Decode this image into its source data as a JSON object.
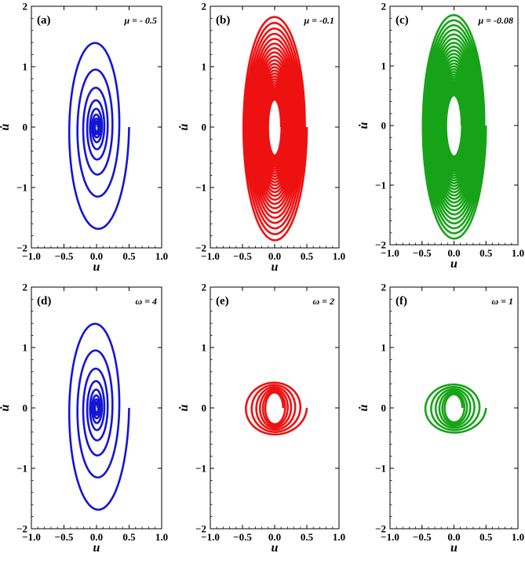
{
  "chart_data": [
    {
      "type": "line",
      "panel_label": "(a)",
      "annotation": "μ = - 0.5",
      "xlabel": "u",
      "ylabel": "u̇",
      "xlim": [
        -1.0,
        1.0
      ],
      "ylim": [
        -2.0,
        2.0
      ],
      "xticks": [
        "−1.0",
        "−0.5",
        "0.0",
        "0.5",
        "1.0"
      ],
      "yticks": [
        "−2",
        "−1",
        "0",
        "1",
        "2"
      ],
      "color": "#1515d6",
      "series": [
        {
          "shape": "spiral",
          "start": [
            0.5,
            0.0
          ],
          "x_amplitude": [
            0.5,
            0.02
          ],
          "y_amplitude": [
            1.85,
            0.06
          ],
          "turns": 9
        }
      ]
    },
    {
      "type": "line",
      "panel_label": "(b)",
      "annotation": "μ = -0.1",
      "xlabel": "u",
      "ylabel": "u̇",
      "xlim": [
        -1.0,
        1.0
      ],
      "ylim": [
        -2.0,
        2.0
      ],
      "xticks": [
        "−1.0",
        "−0.5",
        "0.0",
        "0.5",
        "1.0"
      ],
      "yticks": [
        "−2",
        "−1",
        "0",
        "1",
        "2"
      ],
      "color": "#ee1111",
      "series": [
        {
          "shape": "spiral",
          "start": [
            0.5,
            0.0
          ],
          "x_amplitude": [
            0.5,
            0.1
          ],
          "y_amplitude": [
            1.9,
            0.45
          ],
          "turns": 26
        }
      ]
    },
    {
      "type": "line",
      "panel_label": "(c)",
      "annotation": "μ = -0.08",
      "xlabel": "u",
      "ylabel": "u̇",
      "xlim": [
        -1.0,
        1.0
      ],
      "ylim": [
        -2.0,
        2.0
      ],
      "xticks": [
        "−1.0",
        "−0.5",
        "0.0",
        "0.5",
        "1.0"
      ],
      "yticks": [
        "−2",
        "−1",
        "0",
        "1",
        "2"
      ],
      "color": "#17a317",
      "series": [
        {
          "shape": "spiral",
          "start": [
            0.5,
            0.0
          ],
          "x_amplitude": [
            0.5,
            0.12
          ],
          "y_amplitude": [
            1.92,
            0.5
          ],
          "turns": 28
        }
      ]
    },
    {
      "type": "line",
      "panel_label": "(d)",
      "annotation": "ω = 4",
      "xlabel": "u",
      "ylabel": "u̇",
      "xlim": [
        -1.0,
        1.0
      ],
      "ylim": [
        -2.0,
        2.0
      ],
      "xticks": [
        "−1.0",
        "−0.5",
        "0.0",
        "0.5",
        "1.0"
      ],
      "yticks": [
        "−2",
        "−1",
        "0",
        "1",
        "2"
      ],
      "color": "#1515d6",
      "series": [
        {
          "shape": "spiral",
          "start": [
            0.5,
            0.0
          ],
          "x_amplitude": [
            0.5,
            0.02
          ],
          "y_amplitude": [
            1.85,
            0.06
          ],
          "turns": 9
        }
      ]
    },
    {
      "type": "line",
      "panel_label": "(e)",
      "annotation": "ω = 2",
      "xlabel": "u",
      "ylabel": "u̇",
      "xlim": [
        -1.0,
        1.0
      ],
      "ylim": [
        -2.0,
        2.0
      ],
      "xticks": [
        "−1.0",
        "−0.5",
        "0.0",
        "0.5",
        "1.0"
      ],
      "yticks": [
        "−2",
        "−1",
        "0",
        "1",
        "2"
      ],
      "color": "#ee1111",
      "series": [
        {
          "shape": "spiral",
          "start": [
            0.5,
            0.0
          ],
          "x_amplitude": [
            0.5,
            0.13
          ],
          "y_amplitude": [
            0.45,
            0.25
          ],
          "turns": 6
        }
      ]
    },
    {
      "type": "line",
      "panel_label": "(f)",
      "annotation": "ω = 1",
      "xlabel": "u",
      "ylabel": "u̇",
      "xlim": [
        -1.0,
        1.0
      ],
      "ylim": [
        -2.0,
        2.0
      ],
      "xticks": [
        "−1.0",
        "−0.5",
        "0.0",
        "0.5",
        "1.0"
      ],
      "yticks": [
        "−2",
        "−1",
        "0",
        "1",
        "2"
      ],
      "color": "#17a317",
      "series": [
        {
          "shape": "spiral",
          "start": [
            0.5,
            0.0
          ],
          "x_amplitude": [
            0.5,
            0.13
          ],
          "y_amplitude": [
            0.42,
            0.22
          ],
          "turns": 6
        }
      ]
    }
  ]
}
